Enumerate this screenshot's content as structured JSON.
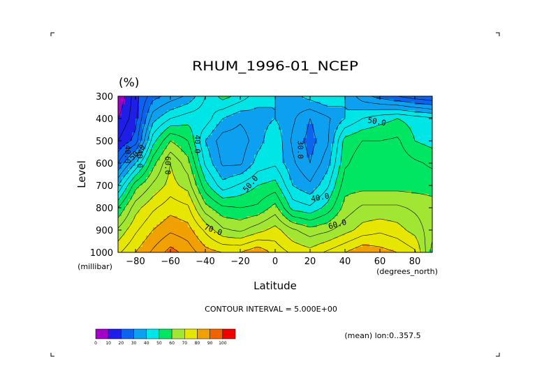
{
  "chart_data": {
    "type": "heatmap",
    "title": "RHUM_1996-01_NCEP",
    "units": "(%)",
    "xlabel": "Latitude",
    "xunits": "(degrees_north)",
    "ylabel": "Level",
    "yunits": "(millibar)",
    "xlim": [
      -90,
      90
    ],
    "ylim": [
      1000,
      300
    ],
    "x_ticks": [
      -80,
      -60,
      -40,
      -20,
      0,
      20,
      40,
      60,
      80
    ],
    "x_tick_labels": [
      "−80",
      "−60",
      "−40",
      "−20",
      "0",
      "20",
      "40",
      "60",
      "80"
    ],
    "y_ticks": [
      300,
      400,
      500,
      600,
      700,
      800,
      900,
      1000
    ],
    "y_tick_labels": [
      "300",
      "400",
      "500",
      "600",
      "700",
      "800",
      "900",
      "1000"
    ],
    "x": [
      -90,
      -80,
      -70,
      -60,
      -50,
      -40,
      -30,
      -20,
      -10,
      0,
      10,
      20,
      30,
      40,
      50,
      60,
      70,
      80,
      90
    ],
    "levels": [
      300,
      400,
      500,
      600,
      700,
      800,
      900,
      1000
    ],
    "z": [
      [
        5,
        18,
        28,
        32,
        36,
        45,
        52,
        48,
        42,
        40,
        38,
        42,
        45,
        40,
        32,
        28,
        25,
        22,
        20
      ],
      [
        10,
        18,
        38,
        45,
        48,
        48,
        40,
        36,
        38,
        40,
        36,
        30,
        34,
        40,
        45,
        48,
        50,
        48,
        46
      ],
      [
        15,
        22,
        48,
        60,
        55,
        40,
        32,
        32,
        38,
        44,
        34,
        28,
        34,
        52,
        55,
        55,
        56,
        50,
        48
      ],
      [
        25,
        40,
        58,
        70,
        62,
        44,
        34,
        34,
        42,
        44,
        36,
        30,
        38,
        54,
        58,
        58,
        58,
        56,
        54
      ],
      [
        40,
        58,
        66,
        72,
        68,
        52,
        42,
        46,
        50,
        52,
        40,
        36,
        44,
        58,
        58,
        58,
        58,
        58,
        58
      ],
      [
        55,
        68,
        74,
        78,
        76,
        62,
        56,
        55,
        56,
        62,
        48,
        46,
        52,
        62,
        66,
        66,
        66,
        64,
        62
      ],
      [
        66,
        74,
        80,
        84,
        82,
        74,
        66,
        64,
        68,
        72,
        66,
        62,
        64,
        68,
        72,
        74,
        72,
        68,
        62
      ],
      [
        74,
        80,
        86,
        92,
        88,
        82,
        80,
        80,
        84,
        78,
        74,
        72,
        76,
        80,
        84,
        82,
        80,
        76,
        58
      ]
    ],
    "contour_labels": [
      "40.0",
      "40.0",
      "50.0",
      "60.0",
      "40.0",
      "30.0",
      "50.0",
      "40.0",
      "50.0",
      "60.0",
      "70.0"
    ],
    "contour_interval_text": "CONTOUR INTERVAL = 5.000E+00",
    "colorbar": {
      "boundaries": [
        "0",
        "10",
        "20",
        "30",
        "40",
        "50",
        "60",
        "70",
        "80",
        "90",
        "100"
      ],
      "colors": [
        "#a000c8",
        "#1e1ee6",
        "#0a64f0",
        "#0ea0f0",
        "#00e6e6",
        "#00e662",
        "#a0e632",
        "#e6e600",
        "#f0a000",
        "#f06400",
        "#f00000"
      ]
    },
    "footer_note": "(mean) lon:0..357.5",
    "grid": false
  }
}
